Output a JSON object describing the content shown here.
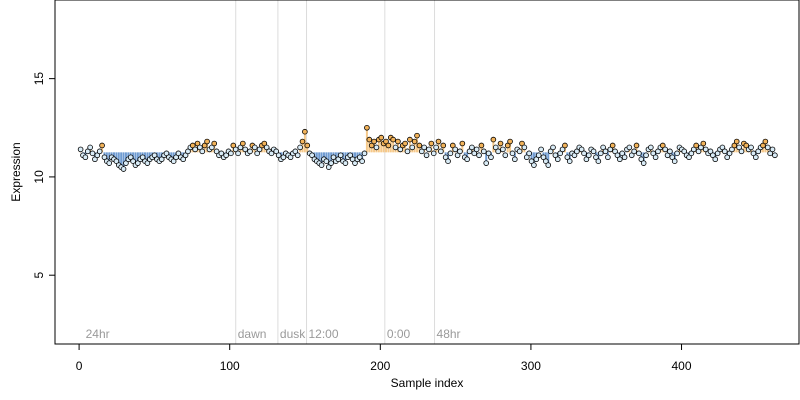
{
  "chart_data": {
    "type": "scatter",
    "title": "",
    "xlabel": "Sample index",
    "ylabel": "Expression",
    "xlim": [
      -16,
      478
    ],
    "ylim": [
      1.5,
      19.0
    ],
    "x_ticks": [
      0,
      100,
      200,
      300,
      400
    ],
    "y_ticks": [
      5,
      10,
      15
    ],
    "baseline": 11.25,
    "grid": false,
    "colors": {
      "point_fill": "#d9ecf7",
      "point_fill_high": "#f2b35a",
      "point_stroke": "#000000",
      "bar_above": "#f6c98a",
      "bar_below": "#6f9bd1",
      "marker_line": "#dcdcdc",
      "annotation_text": "#9a9a9a"
    },
    "markers": [
      {
        "x": 3,
        "label": "24hr"
      },
      {
        "x": 104,
        "label": "dawn"
      },
      {
        "x": 132,
        "label": "dusk"
      },
      {
        "x": 151,
        "label": "12:00"
      },
      {
        "x": 203,
        "label": "0:00"
      },
      {
        "x": 236,
        "label": "48hr"
      }
    ],
    "series": [
      {
        "values": [
          11.4,
          11.1,
          11.0,
          11.3,
          11.5,
          11.2,
          10.9,
          11.1,
          11.3,
          11.6,
          11.0,
          10.8,
          10.7,
          11.0,
          10.9,
          10.8,
          10.6,
          10.5,
          10.4,
          10.7,
          10.9,
          11.0,
          10.8,
          10.6,
          10.7,
          10.9,
          11.0,
          10.8,
          10.7,
          10.9,
          11.0,
          11.1,
          10.9,
          10.8,
          10.9,
          11.1,
          11.2,
          11.0,
          10.9,
          10.8,
          11.0,
          11.2,
          11.0,
          10.9,
          11.1,
          11.3,
          11.5,
          11.6,
          11.4,
          11.7,
          11.5,
          11.3,
          11.6,
          11.8,
          11.4,
          11.5,
          11.7,
          11.3,
          11.1,
          11.2,
          11.0,
          11.1,
          11.3,
          11.2,
          11.6,
          11.4,
          11.2,
          11.5,
          11.7,
          11.4,
          11.2,
          11.3,
          11.6,
          11.5,
          11.2,
          11.4,
          11.6,
          11.7,
          11.5,
          11.3,
          11.2,
          11.4,
          11.3,
          11.1,
          10.9,
          11.0,
          11.2,
          11.1,
          11.0,
          11.2,
          11.3,
          11.1,
          11.5,
          11.8,
          12.3,
          11.6,
          11.2,
          11.1,
          10.9,
          10.8,
          10.7,
          10.6,
          10.9,
          10.8,
          10.5,
          10.7,
          11.0,
          10.8,
          10.9,
          11.1,
          10.8,
          10.7,
          11.0,
          11.1,
          10.9,
          10.7,
          10.9,
          11.0,
          10.8,
          11.2,
          12.5,
          11.9,
          11.6,
          11.8,
          11.5,
          11.9,
          12.0,
          11.7,
          11.8,
          11.6,
          12.0,
          11.9,
          11.5,
          11.8,
          11.4,
          11.6,
          11.7,
          11.3,
          11.9,
          11.5,
          11.8,
          12.1,
          11.6,
          11.3,
          11.5,
          11.1,
          11.4,
          11.7,
          11.2,
          11.5,
          11.8,
          11.3,
          11.6,
          11.0,
          10.8,
          11.2,
          11.6,
          11.4,
          11.1,
          11.3,
          11.7,
          11.0,
          10.9,
          11.3,
          11.5,
          11.2,
          11.4,
          11.1,
          11.6,
          11.3,
          10.7,
          11.2,
          11.0,
          11.9,
          11.5,
          11.3,
          11.7,
          11.4,
          11.1,
          11.6,
          11.8,
          11.2,
          10.9,
          11.4,
          11.3,
          11.7,
          11.5,
          11.0,
          11.2,
          10.8,
          10.6,
          10.9,
          11.1,
          11.4,
          11.0,
          10.8,
          10.6,
          11.3,
          11.5,
          11.1,
          10.9,
          11.2,
          11.4,
          11.6,
          11.0,
          10.8,
          11.2,
          11.1,
          11.3,
          11.5,
          11.4,
          11.2,
          10.9,
          11.1,
          11.4,
          11.3,
          11.0,
          10.8,
          11.2,
          11.5,
          11.3,
          11.0,
          11.4,
          11.6,
          11.3,
          11.1,
          10.9,
          11.2,
          11.0,
          11.4,
          11.5,
          11.1,
          11.3,
          11.6,
          11.2,
          10.9,
          10.7,
          11.1,
          11.4,
          11.5,
          11.2,
          11.0,
          11.3,
          11.5,
          11.6,
          11.4,
          11.1,
          11.3,
          11.0,
          10.8,
          11.2,
          11.5,
          11.4,
          11.3,
          11.1,
          11.0,
          11.2,
          11.4,
          11.6,
          11.3,
          11.5,
          11.7,
          11.4,
          11.2,
          11.3,
          11.1,
          10.9,
          11.2,
          11.4,
          11.5,
          11.3,
          11.0,
          11.2,
          11.4,
          11.6,
          11.8,
          11.5,
          11.3,
          11.7,
          11.6,
          11.4,
          11.5,
          11.2,
          11.0,
          11.3,
          11.5,
          11.6,
          11.8,
          11.5,
          11.2,
          11.4,
          11.1
        ]
      }
    ]
  }
}
